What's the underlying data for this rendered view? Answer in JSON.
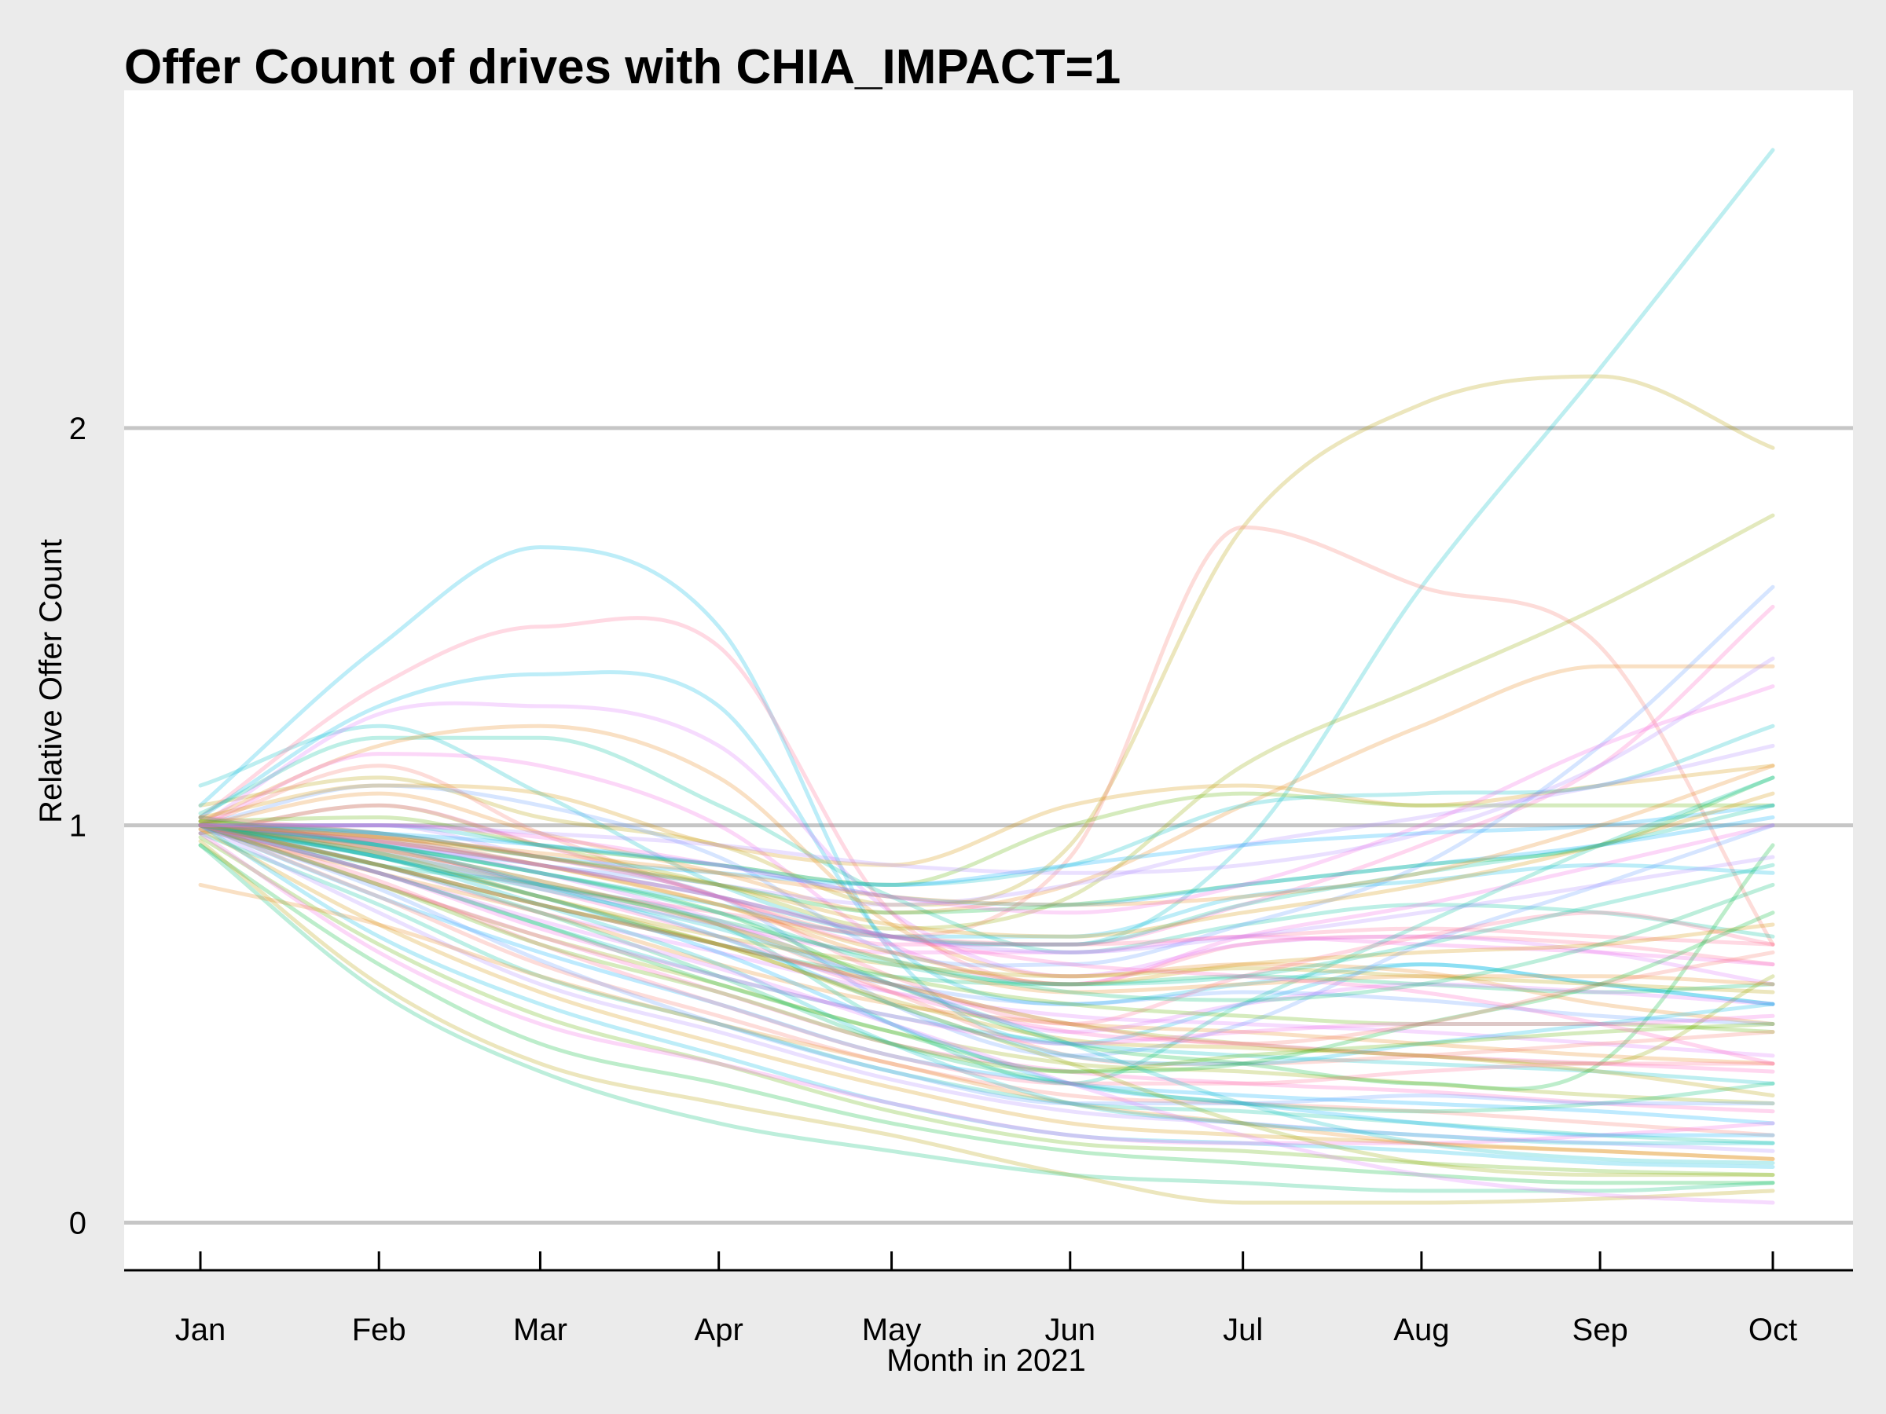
{
  "chart_data": {
    "type": "line",
    "title": "Offer Count of drives with CHIA_IMPACT=1",
    "xlabel": "Month in 2021",
    "ylabel": "Relative Offer Count",
    "x": [
      "Jan",
      "Feb",
      "Mar",
      "Apr",
      "May",
      "Jun",
      "Jul",
      "Aug",
      "Sep",
      "Oct"
    ],
    "x_day_of_year": [
      1,
      32,
      60,
      91,
      121,
      152,
      182,
      213,
      244,
      274
    ],
    "ylim": [
      -0.12,
      2.85
    ],
    "yticks": [
      0,
      1,
      2
    ],
    "grid": "horizontal",
    "legend": "none",
    "palette": [
      "#f8766d",
      "#e7861b",
      "#d39200",
      "#b79f00",
      "#93aa00",
      "#5eb300",
      "#00ba38",
      "#00bf74",
      "#00c19f",
      "#00bfc4",
      "#00b9e3",
      "#00adfa",
      "#619cff",
      "#ae87ff",
      "#db72fb",
      "#f564e3",
      "#ff61c3",
      "#ff6c91"
    ],
    "series": [
      {
        "color": "#00bfc4",
        "values": [
          1.1,
          1.25,
          1.08,
          0.85,
          0.72,
          0.7,
          0.95,
          1.6,
          2.15,
          2.7
        ]
      },
      {
        "color": "#b79f00",
        "values": [
          1.05,
          1.12,
          1.02,
          0.95,
          0.8,
          0.95,
          1.75,
          2.06,
          2.13,
          1.95
        ]
      },
      {
        "color": "#f8766d",
        "values": [
          1.0,
          1.15,
          0.98,
          0.82,
          0.72,
          0.92,
          1.75,
          1.6,
          1.45,
          0.7
        ]
      },
      {
        "color": "#93aa00",
        "values": [
          0.98,
          1.05,
          0.95,
          0.85,
          0.74,
          0.82,
          1.15,
          1.35,
          1.55,
          1.78
        ]
      },
      {
        "color": "#00b9e3",
        "values": [
          1.05,
          1.45,
          1.7,
          1.5,
          0.68,
          0.45,
          0.55,
          0.65,
          0.6,
          0.55
        ]
      },
      {
        "color": "#ff6c91",
        "values": [
          1.02,
          1.35,
          1.5,
          1.45,
          0.78,
          0.6,
          0.7,
          0.72,
          0.7,
          0.65
        ]
      },
      {
        "color": "#00b9e3",
        "values": [
          1.02,
          1.3,
          1.38,
          1.3,
          0.7,
          0.55,
          0.6,
          0.65,
          0.6,
          0.55
        ]
      },
      {
        "color": "#db72fb",
        "values": [
          1.0,
          1.28,
          1.3,
          1.2,
          0.78,
          0.62,
          0.7,
          0.72,
          0.68,
          0.6
        ]
      },
      {
        "color": "#00c19f",
        "values": [
          1.03,
          1.22,
          1.22,
          1.05,
          0.82,
          0.68,
          0.75,
          0.8,
          0.78,
          0.72
        ]
      },
      {
        "color": "#e7861b",
        "values": [
          1.01,
          1.2,
          1.25,
          1.12,
          0.75,
          0.62,
          0.65,
          0.63,
          0.55,
          0.5
        ]
      },
      {
        "color": "#f564e3",
        "values": [
          1.0,
          1.18,
          1.15,
          1.0,
          0.7,
          0.6,
          0.72,
          0.8,
          0.9,
          1.0
        ]
      },
      {
        "color": "#619cff",
        "values": [
          1.0,
          1.1,
          1.05,
          0.92,
          0.68,
          0.65,
          0.75,
          0.9,
          1.2,
          1.6
        ]
      },
      {
        "color": "#d39200",
        "values": [
          1.02,
          1.1,
          1.08,
          0.95,
          0.9,
          1.05,
          1.1,
          1.05,
          1.1,
          1.15
        ]
      },
      {
        "color": "#ff61c3",
        "values": [
          0.98,
          1.05,
          0.95,
          0.82,
          0.7,
          0.7,
          0.8,
          0.95,
          1.15,
          1.55
        ]
      },
      {
        "color": "#e7861b",
        "values": [
          1.0,
          1.08,
          0.98,
          0.88,
          0.78,
          0.85,
          1.05,
          1.25,
          1.4,
          1.4
        ]
      },
      {
        "color": "#5eb300",
        "values": [
          1.01,
          1.02,
          0.95,
          0.9,
          0.85,
          1.0,
          1.08,
          1.05,
          1.05,
          1.05
        ]
      },
      {
        "color": "#00bfc4",
        "values": [
          1.0,
          1.0,
          0.95,
          0.9,
          0.85,
          0.9,
          1.05,
          1.08,
          1.1,
          1.25
        ]
      },
      {
        "color": "#ae87ff",
        "values": [
          0.99,
          1.0,
          0.92,
          0.85,
          0.8,
          0.85,
          0.95,
          1.02,
          1.1,
          1.2
        ]
      },
      {
        "color": "#00adfa",
        "values": [
          1.0,
          0.98,
          0.92,
          0.88,
          0.85,
          0.9,
          0.95,
          0.98,
          1.0,
          1.05
        ]
      },
      {
        "color": "#00ba38",
        "values": [
          1.01,
          0.98,
          0.92,
          0.85,
          0.78,
          0.8,
          0.85,
          0.9,
          0.95,
          1.12
        ]
      },
      {
        "color": "#00c19f",
        "values": [
          1.0,
          0.96,
          0.9,
          0.82,
          0.72,
          0.7,
          0.8,
          0.88,
          0.95,
          1.05
        ]
      },
      {
        "color": "#00b9e3",
        "values": [
          1.0,
          0.95,
          0.88,
          0.8,
          0.72,
          0.72,
          0.82,
          0.86,
          0.9,
          0.88
        ]
      },
      {
        "color": "#ff6c91",
        "values": [
          1.0,
          0.95,
          0.85,
          0.78,
          0.72,
          0.7,
          0.72,
          0.74,
          0.72,
          0.7
        ]
      },
      {
        "color": "#f564e3",
        "values": [
          1.0,
          0.94,
          0.85,
          0.75,
          0.68,
          0.68,
          0.72,
          0.7,
          0.68,
          0.65
        ]
      },
      {
        "color": "#b79f00",
        "values": [
          1.0,
          0.92,
          0.82,
          0.72,
          0.65,
          0.62,
          0.64,
          0.62,
          0.6,
          0.58
        ]
      },
      {
        "color": "#00bf74",
        "values": [
          1.0,
          0.92,
          0.82,
          0.7,
          0.62,
          0.6,
          0.62,
          0.6,
          0.58,
          0.6
        ]
      },
      {
        "color": "#619cff",
        "values": [
          1.0,
          0.9,
          0.8,
          0.7,
          0.6,
          0.55,
          0.58,
          0.56,
          0.52,
          0.5
        ]
      },
      {
        "color": "#db72fb",
        "values": [
          1.0,
          0.9,
          0.78,
          0.68,
          0.58,
          0.52,
          0.5,
          0.48,
          0.45,
          0.42
        ]
      },
      {
        "color": "#e7861b",
        "values": [
          0.99,
          0.88,
          0.78,
          0.65,
          0.55,
          0.5,
          0.48,
          0.45,
          0.42,
          0.4
        ]
      },
      {
        "color": "#00bfc4",
        "values": [
          1.0,
          0.88,
          0.75,
          0.62,
          0.52,
          0.45,
          0.42,
          0.4,
          0.38,
          0.35
        ]
      },
      {
        "color": "#93aa00",
        "values": [
          1.0,
          0.85,
          0.72,
          0.6,
          0.48,
          0.4,
          0.38,
          0.35,
          0.32,
          0.3
        ]
      },
      {
        "color": "#ff61c3",
        "values": [
          1.0,
          0.85,
          0.72,
          0.58,
          0.45,
          0.38,
          0.35,
          0.33,
          0.3,
          0.28
        ]
      },
      {
        "color": "#00adfa",
        "values": [
          1.0,
          0.82,
          0.68,
          0.55,
          0.42,
          0.35,
          0.32,
          0.3,
          0.28,
          0.25
        ]
      },
      {
        "color": "#f8766d",
        "values": [
          1.0,
          0.82,
          0.65,
          0.52,
          0.4,
          0.32,
          0.3,
          0.28,
          0.25,
          0.22
        ]
      },
      {
        "color": "#00c19f",
        "values": [
          0.98,
          0.8,
          0.62,
          0.5,
          0.38,
          0.3,
          0.28,
          0.25,
          0.22,
          0.2
        ]
      },
      {
        "color": "#ae87ff",
        "values": [
          1.0,
          0.78,
          0.6,
          0.48,
          0.36,
          0.28,
          0.25,
          0.22,
          0.2,
          0.18
        ]
      },
      {
        "color": "#d39200",
        "values": [
          0.99,
          0.75,
          0.58,
          0.45,
          0.34,
          0.25,
          0.22,
          0.2,
          0.18,
          0.16
        ]
      },
      {
        "color": "#00b9e3",
        "values": [
          1.0,
          0.72,
          0.55,
          0.42,
          0.3,
          0.22,
          0.2,
          0.18,
          0.15,
          0.14
        ]
      },
      {
        "color": "#5eb300",
        "values": [
          0.97,
          0.7,
          0.52,
          0.4,
          0.28,
          0.2,
          0.18,
          0.15,
          0.13,
          0.12
        ]
      },
      {
        "color": "#00ba38",
        "values": [
          0.95,
          0.65,
          0.45,
          0.35,
          0.25,
          0.18,
          0.15,
          0.12,
          0.1,
          0.1
        ]
      },
      {
        "color": "#f564e3",
        "values": [
          0.98,
          0.68,
          0.5,
          0.4,
          0.3,
          0.22,
          0.2,
          0.2,
          0.22,
          0.25
        ]
      },
      {
        "color": "#b79f00",
        "values": [
          0.96,
          0.6,
          0.4,
          0.3,
          0.22,
          0.12,
          0.05,
          0.05,
          0.06,
          0.08
        ]
      },
      {
        "color": "#00bf74",
        "values": [
          0.95,
          0.58,
          0.38,
          0.25,
          0.18,
          0.12,
          0.1,
          0.08,
          0.08,
          0.1
        ]
      },
      {
        "color": "#e7861b",
        "values": [
          0.85,
          0.75,
          0.62,
          0.5,
          0.4,
          0.3,
          0.25,
          0.2,
          0.18,
          0.16
        ]
      },
      {
        "color": "#619cff",
        "values": [
          1.0,
          0.95,
          0.9,
          0.82,
          0.55,
          0.42,
          0.5,
          0.7,
          0.85,
          1.0
        ]
      },
      {
        "color": "#00c19f",
        "values": [
          1.0,
          0.9,
          0.85,
          0.75,
          0.5,
          0.35,
          0.55,
          0.75,
          0.95,
          1.12
        ]
      },
      {
        "color": "#00ba38",
        "values": [
          1.02,
          0.95,
          0.88,
          0.78,
          0.6,
          0.45,
          0.4,
          0.35,
          0.4,
          0.95
        ]
      },
      {
        "color": "#ff6c91",
        "values": [
          1.02,
          0.98,
          0.92,
          0.82,
          0.62,
          0.5,
          0.62,
          0.72,
          0.78,
          0.7
        ]
      },
      {
        "color": "#93aa00",
        "values": [
          1.0,
          0.9,
          0.8,
          0.7,
          0.6,
          0.5,
          0.45,
          0.42,
          0.4,
          0.62
        ]
      },
      {
        "color": "#00adfa",
        "values": [
          1.0,
          0.92,
          0.82,
          0.68,
          0.5,
          0.35,
          0.3,
          0.25,
          0.22,
          0.22
        ]
      },
      {
        "color": "#db72fb",
        "values": [
          1.0,
          0.96,
          0.88,
          0.76,
          0.6,
          0.48,
          0.55,
          0.6,
          0.58,
          0.55
        ]
      },
      {
        "color": "#d39200",
        "values": [
          1.01,
          0.97,
          0.9,
          0.8,
          0.68,
          0.6,
          0.65,
          0.68,
          0.7,
          0.75
        ]
      },
      {
        "color": "#5eb300",
        "values": [
          1.0,
          0.94,
          0.86,
          0.75,
          0.62,
          0.55,
          0.52,
          0.5,
          0.5,
          0.48
        ]
      },
      {
        "color": "#ff61c3",
        "values": [
          1.0,
          0.93,
          0.84,
          0.72,
          0.58,
          0.48,
          0.45,
          0.42,
          0.4,
          0.38
        ]
      },
      {
        "color": "#00bfc4",
        "values": [
          1.0,
          0.92,
          0.8,
          0.65,
          0.45,
          0.3,
          0.25,
          0.22,
          0.2,
          0.2
        ]
      },
      {
        "color": "#f8766d",
        "values": [
          1.0,
          0.94,
          0.86,
          0.75,
          0.58,
          0.42,
          0.4,
          0.42,
          0.45,
          0.48
        ]
      },
      {
        "color": "#00bf74",
        "values": [
          1.0,
          0.9,
          0.78,
          0.62,
          0.45,
          0.35,
          0.3,
          0.28,
          0.3,
          0.35
        ]
      },
      {
        "color": "#e7861b",
        "values": [
          1.0,
          0.96,
          0.9,
          0.8,
          0.66,
          0.58,
          0.6,
          0.62,
          0.62,
          0.6
        ]
      },
      {
        "color": "#ae87ff",
        "values": [
          1.0,
          0.97,
          0.9,
          0.82,
          0.72,
          0.68,
          0.72,
          0.78,
          0.85,
          0.92
        ]
      },
      {
        "color": "#00b9e3",
        "values": [
          1.0,
          0.95,
          0.85,
          0.72,
          0.55,
          0.42,
          0.4,
          0.45,
          0.5,
          0.55
        ]
      },
      {
        "color": "#b79f00",
        "values": [
          1.0,
          0.93,
          0.82,
          0.7,
          0.56,
          0.46,
          0.44,
          0.42,
          0.38,
          0.32
        ]
      },
      {
        "color": "#00ba38",
        "values": [
          1.0,
          0.88,
          0.75,
          0.6,
          0.48,
          0.38,
          0.4,
          0.5,
          0.6,
          0.78
        ]
      },
      {
        "color": "#ff6c91",
        "values": [
          1.0,
          0.86,
          0.7,
          0.55,
          0.42,
          0.35,
          0.35,
          0.38,
          0.4,
          0.4
        ]
      },
      {
        "color": "#619cff",
        "values": [
          1.0,
          0.84,
          0.66,
          0.5,
          0.38,
          0.3,
          0.3,
          0.32,
          0.3,
          0.3
        ]
      },
      {
        "color": "#5eb300",
        "values": [
          1.0,
          0.85,
          0.7,
          0.58,
          0.45,
          0.38,
          0.42,
          0.45,
          0.48,
          0.5
        ]
      },
      {
        "color": "#f564e3",
        "values": [
          1.0,
          0.88,
          0.74,
          0.62,
          0.52,
          0.45,
          0.48,
          0.5,
          0.5,
          0.52
        ]
      },
      {
        "color": "#00c19f",
        "values": [
          1.0,
          0.95,
          0.88,
          0.78,
          0.65,
          0.6,
          0.62,
          0.7,
          0.8,
          0.9
        ]
      },
      {
        "color": "#d39200",
        "values": [
          1.0,
          0.97,
          0.92,
          0.85,
          0.75,
          0.72,
          0.78,
          0.85,
          0.95,
          1.08
        ]
      },
      {
        "color": "#00adfa",
        "values": [
          1.0,
          0.98,
          0.95,
          0.9,
          0.82,
          0.8,
          0.85,
          0.9,
          0.95,
          1.02
        ]
      },
      {
        "color": "#ff61c3",
        "values": [
          1.0,
          0.96,
          0.9,
          0.82,
          0.72,
          0.65,
          0.62,
          0.58,
          0.5,
          0.4
        ]
      },
      {
        "color": "#93aa00",
        "values": [
          1.0,
          0.9,
          0.8,
          0.7,
          0.55,
          0.4,
          0.25,
          0.15,
          0.12,
          0.12
        ]
      },
      {
        "color": "#00bfc4",
        "values": [
          1.0,
          0.92,
          0.84,
          0.74,
          0.6,
          0.45,
          0.3,
          0.2,
          0.16,
          0.15
        ]
      },
      {
        "color": "#db72fb",
        "values": [
          1.0,
          0.88,
          0.76,
          0.64,
          0.5,
          0.35,
          0.22,
          0.12,
          0.07,
          0.05
        ]
      },
      {
        "color": "#f8766d",
        "values": [
          1.0,
          0.9,
          0.8,
          0.7,
          0.6,
          0.5,
          0.45,
          0.5,
          0.6,
          0.68
        ]
      },
      {
        "color": "#00bf74",
        "values": [
          1.0,
          0.93,
          0.85,
          0.76,
          0.66,
          0.58,
          0.56,
          0.6,
          0.7,
          0.85
        ]
      },
      {
        "color": "#e7861b",
        "values": [
          1.0,
          0.97,
          0.93,
          0.88,
          0.82,
          0.8,
          0.82,
          0.88,
          1.0,
          1.15
        ]
      },
      {
        "color": "#ae87ff",
        "values": [
          1.0,
          1.0,
          0.98,
          0.95,
          0.9,
          0.88,
          0.9,
          0.98,
          1.15,
          1.42
        ]
      },
      {
        "color": "#f564e3",
        "values": [
          1.0,
          1.0,
          0.97,
          0.9,
          0.82,
          0.78,
          0.85,
          1.0,
          1.2,
          1.35
        ]
      }
    ]
  }
}
